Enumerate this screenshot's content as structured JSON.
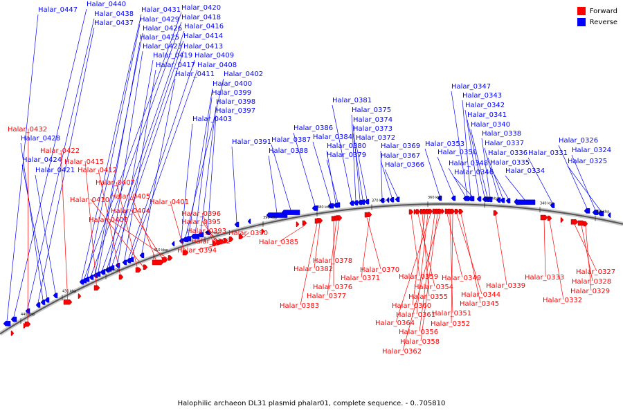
{
  "legend": {
    "forward_label": "Forward",
    "reverse_label": "Reverse",
    "forward_color": "#ff0000",
    "reverse_color": "#0000ff"
  },
  "caption": "Halophilic archaeon DL31 plasmid phalar01, complete sequence. - 0..705810",
  "ticks": [
    "440 kbp",
    "430 kbp",
    "420 kbp",
    "410 kbp",
    "400 kbp",
    "390 kbp",
    "380 kbp",
    "370 kbp",
    "360 kbp",
    "350 kbp",
    "340 kbp",
    "330 kbp"
  ],
  "reverse_labels": [
    "Halar_0447",
    "Halar_0440",
    "Halar_0438",
    "Halar_0437",
    "Halar_0431",
    "Halar_0429",
    "Halar_0426",
    "Halar_0425",
    "Halar_0423",
    "Halar_0419",
    "Halar_0417",
    "Halar_0411",
    "Halar_0420",
    "Halar_0418",
    "Halar_0416",
    "Halar_0414",
    "Halar_0413",
    "Halar_0409",
    "Halar_0408",
    "Halar_0402",
    "Halar_0400",
    "Halar_0399",
    "Halar_0398",
    "Halar_0397",
    "Halar_0403",
    "Halar_0391",
    "Halar_0388",
    "Halar_0387",
    "Halar_0386",
    "Halar_0384",
    "Halar_0380",
    "Halar_0379",
    "Halar_0381",
    "Halar_0375",
    "Halar_0374",
    "Halar_0373",
    "Halar_0372",
    "Halar_0369",
    "Halar_0367",
    "Halar_0366",
    "Halar_0353",
    "Halar_0350",
    "Halar_0348",
    "Halar_0346",
    "Halar_0347",
    "Halar_0343",
    "Halar_0342",
    "Halar_0341",
    "Halar_0340",
    "Halar_0338",
    "Halar_0337",
    "Halar_0336",
    "Halar_0335",
    "Halar_0334",
    "Halar_0331",
    "Halar_0326",
    "Halar_0324",
    "Halar_0325",
    "Halar_0428",
    "Halar_0424",
    "Halar_0421"
  ],
  "forward_labels": [
    "Halar_0432",
    "Halar_0422",
    "Halar_0415",
    "Halar_0412",
    "Halar_0407",
    "Halar_0410",
    "Halar_0405",
    "Halar_0404",
    "Halar_0406",
    "Halar_0401",
    "Halar_0396",
    "Halar_0395",
    "Halar_0393",
    "Halar_0392",
    "Halar_0394",
    "Halar_0390",
    "Halar_0385",
    "Halar_0378",
    "Halar_0382",
    "Halar_0376",
    "Halar_0377",
    "Halar_0383",
    "Halar_0370",
    "Halar_0371",
    "Halar_0359",
    "Halar_0354",
    "Halar_0355",
    "Halar_0360",
    "Halar_0361",
    "Halar_0364",
    "Halar_0356",
    "Halar_0358",
    "Halar_0362",
    "Halar_0349",
    "Halar_0351",
    "Halar_0352",
    "Halar_0344",
    "Halar_0345",
    "Halar_0339",
    "Halar_0333",
    "Halar_0332",
    "Halar_0327",
    "Halar_0328",
    "Halar_0329"
  ]
}
